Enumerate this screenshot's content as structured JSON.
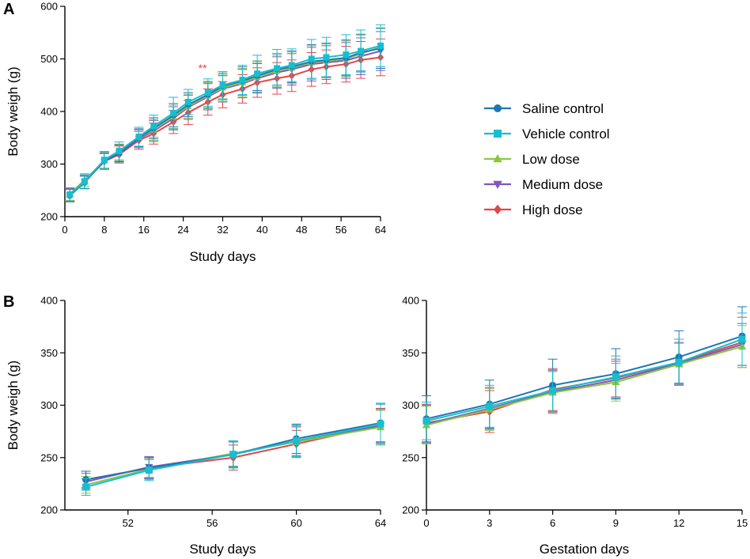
{
  "panel_labels": {
    "a": "A",
    "b": "B"
  },
  "series_styles": [
    {
      "name": "Saline control",
      "color": "#1f77b4",
      "marker": "circle"
    },
    {
      "name": "Vehicle control",
      "color": "#17becf",
      "marker": "square"
    },
    {
      "name": "Low dose",
      "color": "#8cc63f",
      "marker": "triangle-up"
    },
    {
      "name": "Medium dose",
      "color": "#7e57c2",
      "marker": "triangle-down"
    },
    {
      "name": "High dose",
      "color": "#e0474c",
      "marker": "diamond"
    }
  ],
  "chart_data": [
    {
      "id": "A",
      "type": "line",
      "title": "",
      "xlabel": "Study days",
      "ylabel": "Body weigh (g)",
      "xlim": [
        0,
        64
      ],
      "ylim": [
        200,
        600
      ],
      "xticks": [
        0,
        8,
        16,
        24,
        32,
        40,
        48,
        56,
        64
      ],
      "yticks": [
        200,
        300,
        400,
        500,
        600
      ],
      "grid": false,
      "legend": "right",
      "annotation": {
        "text": "**",
        "x": 28,
        "y": 475,
        "color": "#e0474c"
      },
      "x": [
        1,
        4,
        8,
        11,
        15,
        18,
        22,
        25,
        29,
        32,
        36,
        39,
        43,
        46,
        50,
        53,
        57,
        60,
        64
      ],
      "series": [
        {
          "name": "Saline control",
          "values": [
            240,
            265,
            307,
            320,
            350,
            368,
            393,
            413,
            432,
            448,
            458,
            468,
            480,
            485,
            495,
            498,
            502,
            512,
            520
          ],
          "errors": [
            12,
            12,
            15,
            16,
            17,
            20,
            22,
            23,
            25,
            25,
            27,
            28,
            30,
            30,
            32,
            32,
            34,
            35,
            38
          ]
        },
        {
          "name": "Vehicle control",
          "values": [
            242,
            267,
            308,
            325,
            352,
            372,
            397,
            418,
            436,
            450,
            460,
            472,
            482,
            488,
            500,
            503,
            508,
            515,
            525
          ],
          "errors": [
            13,
            13,
            16,
            17,
            18,
            21,
            30,
            24,
            26,
            26,
            28,
            35,
            36,
            31,
            37,
            38,
            38,
            40,
            40
          ]
        },
        {
          "name": "Low dose",
          "values": [
            243,
            270,
            306,
            322,
            350,
            365,
            390,
            410,
            430,
            445,
            455,
            465,
            477,
            483,
            493,
            496,
            500,
            510,
            522
          ],
          "errors": [
            12,
            12,
            15,
            16,
            17,
            20,
            22,
            23,
            25,
            25,
            27,
            28,
            30,
            30,
            32,
            32,
            34,
            35,
            37
          ]
        },
        {
          "name": "Medium dose",
          "values": [
            241,
            266,
            305,
            321,
            348,
            363,
            387,
            408,
            428,
            443,
            453,
            463,
            474,
            480,
            490,
            493,
            497,
            505,
            515
          ],
          "errors": [
            12,
            12,
            15,
            16,
            17,
            20,
            22,
            23,
            25,
            25,
            27,
            28,
            30,
            30,
            32,
            32,
            34,
            35,
            37
          ]
        },
        {
          "name": "High dose",
          "values": [
            242,
            266,
            305,
            318,
            345,
            358,
            380,
            398,
            418,
            432,
            443,
            455,
            463,
            468,
            480,
            485,
            490,
            498,
            503
          ],
          "errors": [
            12,
            12,
            15,
            16,
            17,
            20,
            22,
            23,
            25,
            25,
            27,
            28,
            30,
            30,
            32,
            32,
            34,
            35,
            35
          ]
        }
      ]
    },
    {
      "id": "B-left",
      "type": "line",
      "title": "",
      "xlabel": "Study days",
      "ylabel": "Body weigh (g)",
      "xlim": [
        49,
        64
      ],
      "ylim": [
        200,
        400
      ],
      "xticks": [
        52,
        56,
        60,
        64
      ],
      "yticks": [
        200,
        250,
        300,
        350,
        400
      ],
      "grid": false,
      "x": [
        50,
        53,
        57,
        60,
        64
      ],
      "series": [
        {
          "name": "Saline control",
          "values": [
            229,
            240,
            253,
            268,
            283
          ],
          "errors": [
            8,
            10,
            12,
            14,
            18
          ]
        },
        {
          "name": "Vehicle control",
          "values": [
            222,
            238,
            253,
            266,
            282
          ],
          "errors": [
            8,
            10,
            13,
            15,
            20
          ]
        },
        {
          "name": "Low dose",
          "values": [
            224,
            239,
            254,
            265,
            279
          ],
          "errors": [
            8,
            10,
            12,
            14,
            16
          ]
        },
        {
          "name": "Medium dose",
          "values": [
            227,
            241,
            253,
            266,
            280
          ],
          "errors": [
            8,
            10,
            12,
            14,
            16
          ]
        },
        {
          "name": "High dose",
          "values": [
            229,
            240,
            250,
            263,
            281
          ],
          "errors": [
            8,
            10,
            12,
            13,
            16
          ]
        }
      ]
    },
    {
      "id": "B-right",
      "type": "line",
      "title": "",
      "xlabel": "Gestation days",
      "ylabel": "",
      "xlim": [
        0,
        15
      ],
      "ylim": [
        200,
        400
      ],
      "xticks": [
        0,
        3,
        6,
        9,
        12,
        15
      ],
      "yticks": [
        200,
        250,
        300,
        350,
        400
      ],
      "grid": false,
      "x": [
        0,
        3,
        6,
        9,
        12,
        15
      ],
      "series": [
        {
          "name": "Saline control",
          "values": [
            287,
            301,
            319,
            330,
            346,
            366
          ],
          "errors": [
            22,
            23,
            25,
            24,
            25,
            28
          ]
        },
        {
          "name": "Vehicle control",
          "values": [
            285,
            299,
            314,
            327,
            341,
            363
          ],
          "errors": [
            18,
            20,
            20,
            20,
            22,
            25
          ]
        },
        {
          "name": "Low dose",
          "values": [
            281,
            296,
            312,
            322,
            339,
            356
          ],
          "errors": [
            18,
            20,
            20,
            18,
            20,
            20
          ]
        },
        {
          "name": "Medium dose",
          "values": [
            282,
            297,
            313,
            324,
            340,
            358
          ],
          "errors": [
            18,
            20,
            20,
            18,
            20,
            20
          ]
        },
        {
          "name": "High dose",
          "values": [
            283,
            294,
            315,
            326,
            341,
            360
          ],
          "errors": [
            18,
            20,
            20,
            18,
            22,
            24
          ]
        }
      ]
    }
  ]
}
